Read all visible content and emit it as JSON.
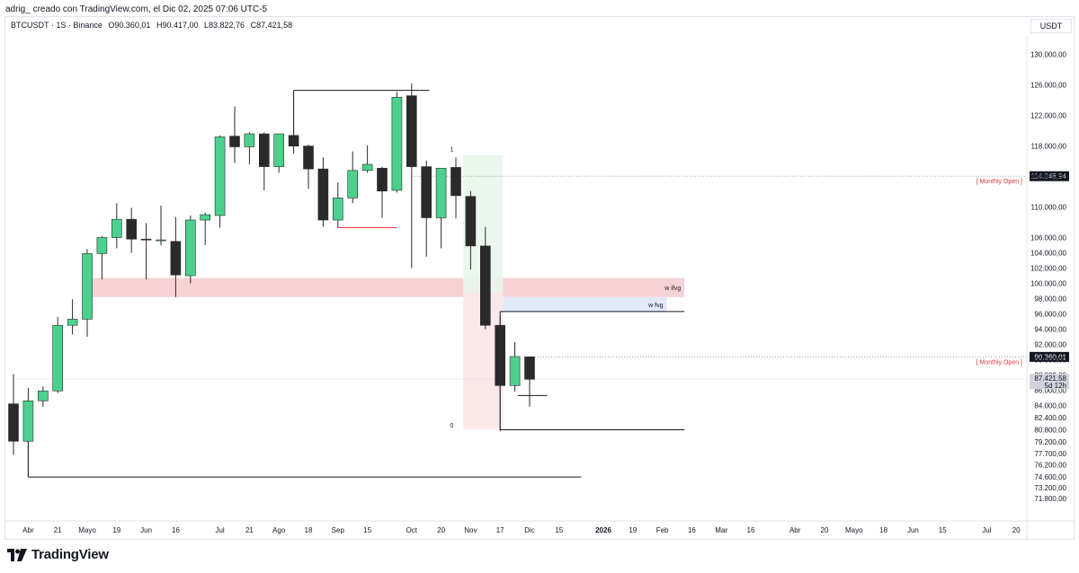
{
  "header": {
    "caption": "adrig_ creado con TradingView.com, el Dic 02, 2025 07:06 UTC-5"
  },
  "legend": {
    "symbol": "BTCUSDT · 1S · Binance",
    "open": "O90.360,01",
    "high": "H90.417,00",
    "low": "L83.822,76",
    "close": "C87.421,58"
  },
  "currency": "USDT",
  "footer": {
    "brand": "TradingView"
  },
  "colors": {
    "up": "#4bd18c",
    "down": "#2a2a2a",
    "zone_red": "#f6cdd0",
    "zone_blue": "#dfe8f7",
    "zone_green": "#e8f6ea",
    "zone_pink": "#fbe7e7",
    "monthly_open": "#e53935",
    "price_tag": "#131722"
  },
  "chart_data": {
    "type": "candlestick",
    "timeframe": "1S",
    "ylim": [
      70500,
      131500
    ],
    "y_ticks": [
      {
        "v": 130000,
        "label": "130.000,00"
      },
      {
        "v": 126000,
        "label": "126.000,00"
      },
      {
        "v": 122000,
        "label": "122.000,00"
      },
      {
        "v": 118000,
        "label": "118.000,00"
      },
      {
        "v": 114000,
        "label": "114.000,00"
      },
      {
        "v": 110000,
        "label": "110.000,00"
      },
      {
        "v": 106000,
        "label": "106.000,00"
      },
      {
        "v": 104000,
        "label": "104.000,00"
      },
      {
        "v": 102000,
        "label": "102.000,00"
      },
      {
        "v": 100000,
        "label": "100.000,00"
      },
      {
        "v": 98000,
        "label": "98.000,00"
      },
      {
        "v": 96000,
        "label": "96.000,00"
      },
      {
        "v": 94000,
        "label": "94.000,00"
      },
      {
        "v": 92000,
        "label": "92.000,00"
      },
      {
        "v": 90000,
        "label": "90.000,00"
      },
      {
        "v": 88000,
        "label": "88.000,00"
      },
      {
        "v": 86000,
        "label": "86.000,00"
      },
      {
        "v": 84000,
        "label": "84.000,00"
      },
      {
        "v": 82400,
        "label": "82.400,00"
      },
      {
        "v": 80800,
        "label": "80.800,00"
      },
      {
        "v": 79200,
        "label": "79.200,00"
      },
      {
        "v": 77700,
        "label": "77.700,00"
      },
      {
        "v": 76200,
        "label": "76.200,00"
      },
      {
        "v": 74600,
        "label": "74.600,00"
      },
      {
        "v": 73200,
        "label": "73.200,00"
      },
      {
        "v": 71800,
        "label": "71.800,00"
      }
    ],
    "x_ticks": [
      {
        "i": 1,
        "label": "Abr"
      },
      {
        "i": 3,
        "label": "21"
      },
      {
        "i": 5,
        "label": "Mayo"
      },
      {
        "i": 7,
        "label": "19"
      },
      {
        "i": 9,
        "label": "Jun"
      },
      {
        "i": 11,
        "label": "16"
      },
      {
        "i": 14,
        "label": "Jul"
      },
      {
        "i": 16,
        "label": "21"
      },
      {
        "i": 18,
        "label": "Ago"
      },
      {
        "i": 20,
        "label": "18"
      },
      {
        "i": 22,
        "label": "Sep"
      },
      {
        "i": 24,
        "label": "15"
      },
      {
        "i": 27,
        "label": "Oct"
      },
      {
        "i": 29,
        "label": "20"
      },
      {
        "i": 31,
        "label": "Nov"
      },
      {
        "i": 33,
        "label": "17"
      },
      {
        "i": 35,
        "label": "Dic"
      },
      {
        "i": 37,
        "label": "15"
      },
      {
        "i": 40,
        "label": "2026",
        "bold": true
      },
      {
        "i": 42,
        "label": "19"
      },
      {
        "i": 44,
        "label": "Feb"
      },
      {
        "i": 46,
        "label": "16"
      },
      {
        "i": 48,
        "label": "Mar"
      },
      {
        "i": 50,
        "label": "16"
      },
      {
        "i": 53,
        "label": "Abr"
      },
      {
        "i": 55,
        "label": "20"
      },
      {
        "i": 57,
        "label": "Mayo"
      },
      {
        "i": 59,
        "label": "18"
      },
      {
        "i": 61,
        "label": "Jun"
      },
      {
        "i": 63,
        "label": "15"
      },
      {
        "i": 66,
        "label": "Jul"
      },
      {
        "i": 68,
        "label": "20"
      }
    ],
    "candles": [
      {
        "o": 84200,
        "h": 88100,
        "l": 77500,
        "c": 79300
      },
      {
        "o": 79300,
        "h": 86300,
        "l": 74600,
        "c": 84600
      },
      {
        "o": 84600,
        "h": 86500,
        "l": 83800,
        "c": 85900
      },
      {
        "o": 85900,
        "h": 95600,
        "l": 85600,
        "c": 94500
      },
      {
        "o": 94500,
        "h": 97900,
        "l": 93300,
        "c": 95300
      },
      {
        "o": 95300,
        "h": 104500,
        "l": 93000,
        "c": 103900
      },
      {
        "o": 103900,
        "h": 106200,
        "l": 100500,
        "c": 106000
      },
      {
        "o": 106000,
        "h": 110500,
        "l": 104600,
        "c": 108400
      },
      {
        "o": 108400,
        "h": 109900,
        "l": 104000,
        "c": 105800
      },
      {
        "o": 105800,
        "h": 107900,
        "l": 100500,
        "c": 105700
      },
      {
        "o": 105600,
        "h": 110200,
        "l": 105000,
        "c": 105700
      },
      {
        "o": 105500,
        "h": 108700,
        "l": 98200,
        "c": 101100
      },
      {
        "o": 101000,
        "h": 108900,
        "l": 100000,
        "c": 108300
      },
      {
        "o": 108300,
        "h": 109300,
        "l": 105000,
        "c": 109000
      },
      {
        "o": 108900,
        "h": 119400,
        "l": 107300,
        "c": 119200
      },
      {
        "o": 119300,
        "h": 123200,
        "l": 115800,
        "c": 117900
      },
      {
        "o": 117900,
        "h": 119800,
        "l": 115600,
        "c": 119600
      },
      {
        "o": 119600,
        "h": 119800,
        "l": 112200,
        "c": 115300
      },
      {
        "o": 115300,
        "h": 119600,
        "l": 114500,
        "c": 119600
      },
      {
        "o": 119400,
        "h": 120400,
        "l": 117000,
        "c": 118000
      },
      {
        "o": 118000,
        "h": 118200,
        "l": 112400,
        "c": 115000
      },
      {
        "o": 115000,
        "h": 116500,
        "l": 107400,
        "c": 108300
      },
      {
        "o": 108300,
        "h": 113200,
        "l": 107300,
        "c": 111200
      },
      {
        "o": 111200,
        "h": 117300,
        "l": 110500,
        "c": 114800
      },
      {
        "o": 114800,
        "h": 118100,
        "l": 114500,
        "c": 115600
      },
      {
        "o": 115100,
        "h": 115300,
        "l": 108600,
        "c": 112100
      },
      {
        "o": 112200,
        "h": 125100,
        "l": 111900,
        "c": 124400
      },
      {
        "o": 124600,
        "h": 126200,
        "l": 102000,
        "c": 115300
      },
      {
        "o": 115300,
        "h": 116100,
        "l": 103500,
        "c": 108600
      },
      {
        "o": 108600,
        "h": 114900,
        "l": 104600,
        "c": 115100
      },
      {
        "o": 115200,
        "h": 116500,
        "l": 108500,
        "c": 111500
      },
      {
        "o": 111400,
        "h": 112100,
        "l": 101800,
        "c": 104900
      },
      {
        "o": 104900,
        "h": 107400,
        "l": 94000,
        "c": 94500
      },
      {
        "o": 94500,
        "h": 95500,
        "l": 80600,
        "c": 86600
      },
      {
        "o": 86600,
        "h": 92300,
        "l": 85800,
        "c": 90400
      },
      {
        "o": 90360,
        "h": 90417,
        "l": 83823,
        "c": 87422
      }
    ],
    "zones": [
      {
        "name": "w ifvg",
        "from_i": 5,
        "to_i": 45.5,
        "y1": 98200,
        "y2": 100700,
        "kind": "red",
        "label": "w ifvg"
      },
      {
        "name": "w fvg",
        "from_i": 32,
        "to_i": 44.3,
        "y1": 96300,
        "y2": 98200,
        "kind": "blue",
        "label": "w fvg"
      },
      {
        "name": "long-position",
        "from_i": 30.5,
        "to_i": 33.2,
        "y1": 98700,
        "y2": 116800,
        "kind": "green",
        "label": ""
      },
      {
        "name": "short-position",
        "from_i": 30.5,
        "to_i": 33.2,
        "y1": 80800,
        "y2": 98700,
        "kind": "pink",
        "label": ""
      }
    ],
    "lines": [
      {
        "name": "support-low",
        "from_i": 1,
        "to_i": 38.5,
        "y": 74600
      },
      {
        "name": "ath-top",
        "from_i": 19,
        "to_i": 28.2,
        "y": 125300
      },
      {
        "name": "fvg-top",
        "from_i": 33,
        "to_i": 45.5,
        "y": 96300
      },
      {
        "name": "nov-low",
        "from_i": 33,
        "to_i": 45.5,
        "y": 80800
      },
      {
        "name": "dec-low",
        "from_i": 34.2,
        "to_i": 36.2,
        "y": 85300
      }
    ],
    "red_lines": [
      {
        "name": "sep-low",
        "from_i": 22,
        "to_i": 26,
        "y": 107300
      }
    ],
    "monthly_open_lines": [
      {
        "y": 114048.94,
        "label": "[ Monthly Open ]",
        "tag": "114.048,94",
        "from_i": 27,
        "color": "#e53935"
      },
      {
        "y": 90360.01,
        "label": "[ Monthly Open ]",
        "tag": "90.360,01",
        "from_i": 35,
        "color": "#e53935"
      }
    ],
    "current_price": {
      "y": 87421.58,
      "tag": "87.421,58",
      "countdown": "5d 12h"
    },
    "position_labels": [
      {
        "i": 29.6,
        "y": 117300,
        "text": "1"
      },
      {
        "i": 29.6,
        "y": 81100,
        "text": "0"
      }
    ]
  }
}
